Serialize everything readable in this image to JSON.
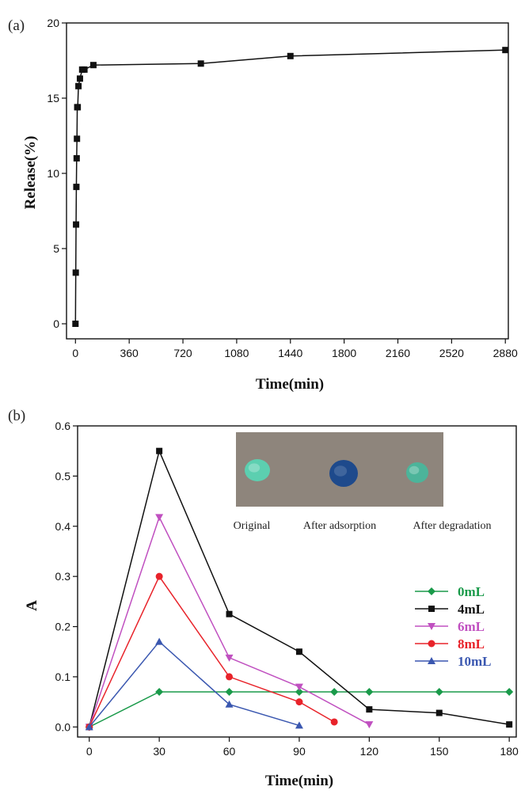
{
  "chart_data": [
    {
      "type": "line",
      "panel_label": "(a)",
      "xlabel": "Time(min)",
      "ylabel": "Release(%)",
      "xlim": [
        -60,
        2900
      ],
      "ylim": [
        -1,
        20
      ],
      "xticks": [
        0,
        360,
        720,
        1080,
        1440,
        1800,
        2160,
        2520,
        2880
      ],
      "yticks": [
        0,
        5,
        10,
        15,
        20
      ],
      "grid": false,
      "series": [
        {
          "color": "#111111",
          "marker": "square",
          "x": [
            0,
            2,
            4,
            6,
            8,
            10,
            12,
            15,
            20,
            30,
            45,
            60,
            120,
            840,
            1440,
            2880
          ],
          "y": [
            0,
            3.4,
            6.6,
            9.1,
            11.0,
            12.3,
            14.4,
            14.4,
            15.8,
            16.3,
            16.9,
            16.9,
            17.2,
            17.3,
            17.8,
            18.2
          ]
        }
      ]
    },
    {
      "type": "line",
      "panel_label": "(b)",
      "xlabel": "Time(min)",
      "ylabel": "A",
      "xlim": [
        -5,
        183
      ],
      "ylim": [
        -0.02,
        0.6
      ],
      "xticks": [
        0,
        30,
        60,
        90,
        120,
        150,
        180
      ],
      "yticks": [
        0.0,
        0.1,
        0.2,
        0.3,
        0.4,
        0.5,
        0.6
      ],
      "grid": false,
      "legend_position": "right",
      "series": [
        {
          "name": "0mL",
          "color": "#1a9a4a",
          "marker": "diamond",
          "x": [
            0,
            30,
            60,
            90,
            105,
            120,
            150,
            180
          ],
          "y": [
            0.0,
            0.07,
            0.07,
            0.07,
            0.07,
            0.07,
            0.07,
            0.07
          ]
        },
        {
          "name": "4mL",
          "color": "#111111",
          "marker": "square",
          "x": [
            0,
            30,
            60,
            90,
            120,
            150,
            180
          ],
          "y": [
            0.0,
            0.55,
            0.225,
            0.15,
            0.035,
            0.028,
            0.005
          ]
        },
        {
          "name": "6mL",
          "color": "#c050c0",
          "marker": "triangle-down",
          "x": [
            0,
            30,
            60,
            90,
            120
          ],
          "y": [
            0.0,
            0.418,
            0.138,
            0.08,
            0.005
          ]
        },
        {
          "name": "8mL",
          "color": "#e8232a",
          "marker": "circle",
          "x": [
            0,
            30,
            60,
            90,
            105
          ],
          "y": [
            0.0,
            0.3,
            0.1,
            0.05,
            0.01
          ]
        },
        {
          "name": "10mL",
          "color": "#3a57b0",
          "marker": "triangle-up",
          "x": [
            0,
            30,
            60,
            90
          ],
          "y": [
            0.0,
            0.17,
            0.045,
            0.003
          ]
        }
      ],
      "inset": {
        "labels": [
          "Original",
          "After adsorption",
          "After degradation"
        ],
        "sample_colors": [
          "#5ccfb0",
          "#1e4a8c",
          "#4cb49a"
        ],
        "background": "#8e857c"
      }
    }
  ]
}
